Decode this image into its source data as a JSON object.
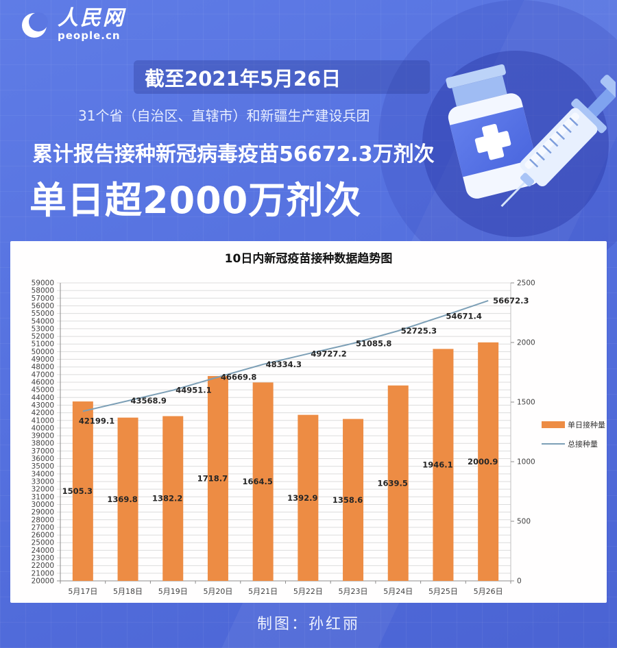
{
  "page": {
    "background_color": "#5571DF"
  },
  "logo": {
    "name_cn": "人民网",
    "name_en": "people.cn"
  },
  "banner": {
    "date_line": "截至2021年5月26日",
    "scope_line": "31个省（自治区、直辖市）和新疆生产建设兵团",
    "total_line": "累计报告接种新冠病毒疫苗56672.3万剂次",
    "headline": "单日超2000万剂次"
  },
  "chart_data": {
    "type": "combo-bar-line",
    "title": "10日内新冠疫苗接种数据趋势图",
    "categories": [
      "5月17日",
      "5月18日",
      "5月19日",
      "5月20日",
      "5月21日",
      "5月22日",
      "5月23日",
      "5月24日",
      "5月25日",
      "5月26日"
    ],
    "series": [
      {
        "name": "单日接种量",
        "type": "bar",
        "axis": "right",
        "color": "#ED8C44",
        "values": [
          1505.3,
          1369.8,
          1382.2,
          1718.7,
          1664.5,
          1392.9,
          1358.6,
          1639.5,
          1946.1,
          2000.9
        ]
      },
      {
        "name": "总接种量",
        "type": "line",
        "axis": "left",
        "color": "#7C9FB6",
        "values": [
          42199.1,
          43568.9,
          44951.1,
          46669.8,
          48334.3,
          49727.2,
          51085.8,
          52725.3,
          54671.4,
          56672.3
        ]
      }
    ],
    "left_axis": {
      "min": 20000,
      "max": 59000,
      "step": 1000
    },
    "right_axis": {
      "min": 0,
      "max": 2500,
      "step": 500
    },
    "legend_position": "right",
    "grid": true
  },
  "footer": {
    "credit": "制图：孙红丽"
  }
}
